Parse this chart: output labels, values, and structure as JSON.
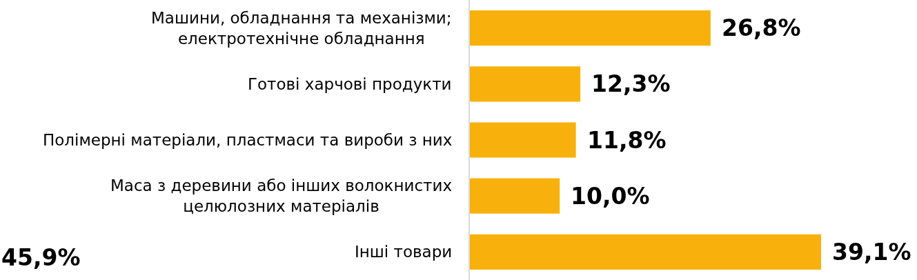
{
  "chart_data": {
    "type": "bar",
    "orientation": "horizontal",
    "categories": [
      "Машини, обладнання та механізми;\nелектротехнічне обладнання",
      "Готові харчові продукти",
      "Полімерні матеріали, пластмаси та вироби з них",
      "Маса з деревини або інших волокнистих\nцелюлозних матеріалів",
      "Інші товари"
    ],
    "values": [
      26.8,
      12.3,
      11.8,
      10.0,
      39.1
    ],
    "value_labels": [
      "26,8%",
      "12,3%",
      "11,8%",
      "10,0%",
      "39,1%"
    ],
    "color": "#f8b10c",
    "tick_labels": "y",
    "annotations": [
      "45,9%"
    ]
  }
}
